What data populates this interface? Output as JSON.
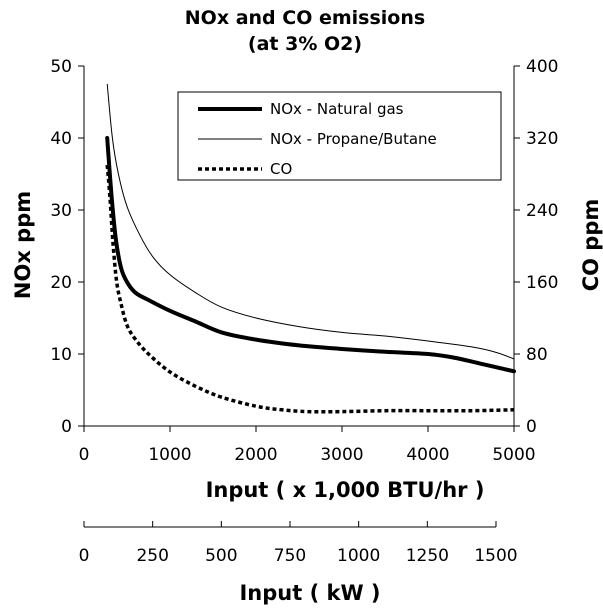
{
  "chart_data": {
    "type": "line",
    "title": "NOx and CO emissions",
    "subtitle": "(at 3% O2)",
    "xlabel": "Input ( x 1,000 BTU/hr )",
    "xlabel2": "Input ( kW )",
    "ylabel": "NOx ppm",
    "ylabel_right": "CO ppm",
    "xlim": [
      0,
      5000
    ],
    "ylim": [
      0,
      50
    ],
    "ylim_right": [
      0,
      400
    ],
    "x_ticks": [
      "0",
      "1000",
      "2000",
      "3000",
      "4000",
      "5000"
    ],
    "x2_ticks": [
      "0",
      "250",
      "500",
      "750",
      "1000",
      "1250",
      "1500"
    ],
    "y_ticks": [
      "0",
      "10",
      "20",
      "30",
      "40",
      "50"
    ],
    "y_right_ticks": [
      "0",
      "80",
      "160",
      "240",
      "320",
      "400"
    ],
    "grid": false,
    "legend": "top-right",
    "series": [
      {
        "name": "NOx - Natural gas",
        "axis": "left",
        "style": "thick",
        "x": [
          270,
          320,
          370,
          430,
          500,
          600,
          750,
          1000,
          1300,
          1600,
          2000,
          2500,
          3000,
          3500,
          4000,
          4300,
          4600,
          5000
        ],
        "y": [
          40,
          32,
          26,
          22,
          20,
          18.5,
          17.5,
          16,
          14.5,
          13,
          12,
          11.2,
          10.7,
          10.3,
          10,
          9.5,
          8.7,
          7.6
        ]
      },
      {
        "name": "NOx - Propane/Butane",
        "axis": "left",
        "style": "thin",
        "x": [
          270,
          330,
          400,
          500,
          650,
          800,
          1000,
          1300,
          1600,
          2000,
          2500,
          3000,
          3500,
          4000,
          4500,
          4800,
          5000
        ],
        "y": [
          47.5,
          40,
          35,
          30.5,
          26.5,
          23.5,
          21,
          18.5,
          16.5,
          15,
          13.8,
          13,
          12.5,
          11.8,
          11,
          10.2,
          9.3
        ]
      },
      {
        "name": "CO",
        "axis": "right",
        "style": "dotted",
        "x": [
          270,
          300,
          340,
          380,
          430,
          500,
          600,
          750,
          1000,
          1300,
          1600,
          2000,
          2300,
          2600,
          3000,
          3500,
          4000,
          4500,
          5000
        ],
        "y": [
          290,
          256,
          200,
          160,
          136,
          112,
          96,
          80,
          60,
          44,
          32,
          22,
          18,
          16,
          16,
          17,
          17,
          17,
          18
        ]
      }
    ]
  }
}
